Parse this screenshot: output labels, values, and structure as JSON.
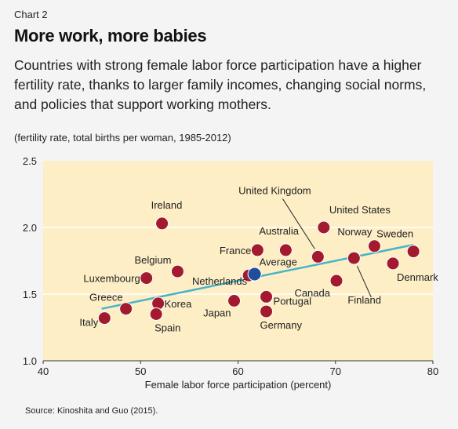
{
  "header": {
    "chart_label": "Chart 2",
    "title": "More work, more babies",
    "subtitle": "Countries with strong female labor force participation have a higher fertility rate, thanks to larger family incomes, changing social norms, and policies that support working mothers.",
    "unit_note": "(fertility rate, total births per woman, 1985-2012)"
  },
  "footer": {
    "source": "Source: Kinoshita and Guo (2015)."
  },
  "colors": {
    "plot_background": "#fdeec6",
    "point": "#a31a2e",
    "average_point": "#1f4e9c",
    "trend_line": "#4ab3c6",
    "gridline": "#ffffff"
  },
  "chart_data": {
    "type": "scatter",
    "xlabel": "Female labor force participation (percent)",
    "ylabel": "",
    "xlim": [
      40,
      80
    ],
    "ylim": [
      1.0,
      2.5
    ],
    "xticks": [
      "40",
      "50",
      "60",
      "70",
      "80"
    ],
    "yticks": [
      "1.0",
      "1.5",
      "2.0",
      "2.5"
    ],
    "grid": true,
    "trend_line": {
      "x": [
        46,
        78
      ],
      "y": [
        1.39,
        1.87
      ]
    },
    "points": [
      {
        "label": "Italy",
        "x": 46.3,
        "y": 1.32
      },
      {
        "label": "Greece",
        "x": 48.5,
        "y": 1.39
      },
      {
        "label": "Korea",
        "x": 51.8,
        "y": 1.43
      },
      {
        "label": "Spain",
        "x": 51.6,
        "y": 1.35
      },
      {
        "label": "Luxembourg",
        "x": 50.6,
        "y": 1.62
      },
      {
        "label": "Belgium",
        "x": 53.8,
        "y": 1.67
      },
      {
        "label": "Ireland",
        "x": 52.2,
        "y": 2.03
      },
      {
        "label": "Japan",
        "x": 59.6,
        "y": 1.45
      },
      {
        "label": "Netherlands",
        "x": 61.1,
        "y": 1.64
      },
      {
        "label": "Average",
        "x": 61.7,
        "y": 1.65
      },
      {
        "label": "France",
        "x": 62.0,
        "y": 1.83
      },
      {
        "label": "Portugal",
        "x": 62.9,
        "y": 1.48
      },
      {
        "label": "Germany",
        "x": 62.9,
        "y": 1.37
      },
      {
        "label": "Australia",
        "x": 64.9,
        "y": 1.83
      },
      {
        "label": "United Kingdom",
        "x": 68.2,
        "y": 1.78
      },
      {
        "label": "United States",
        "x": 68.8,
        "y": 2.0
      },
      {
        "label": "Canada",
        "x": 70.1,
        "y": 1.6
      },
      {
        "label": "Finland",
        "x": 71.9,
        "y": 1.77
      },
      {
        "label": "Norway",
        "x": 74.0,
        "y": 1.86
      },
      {
        "label": "Denmark",
        "x": 75.9,
        "y": 1.73
      },
      {
        "label": "Sweden",
        "x": 78.0,
        "y": 1.82
      }
    ]
  }
}
